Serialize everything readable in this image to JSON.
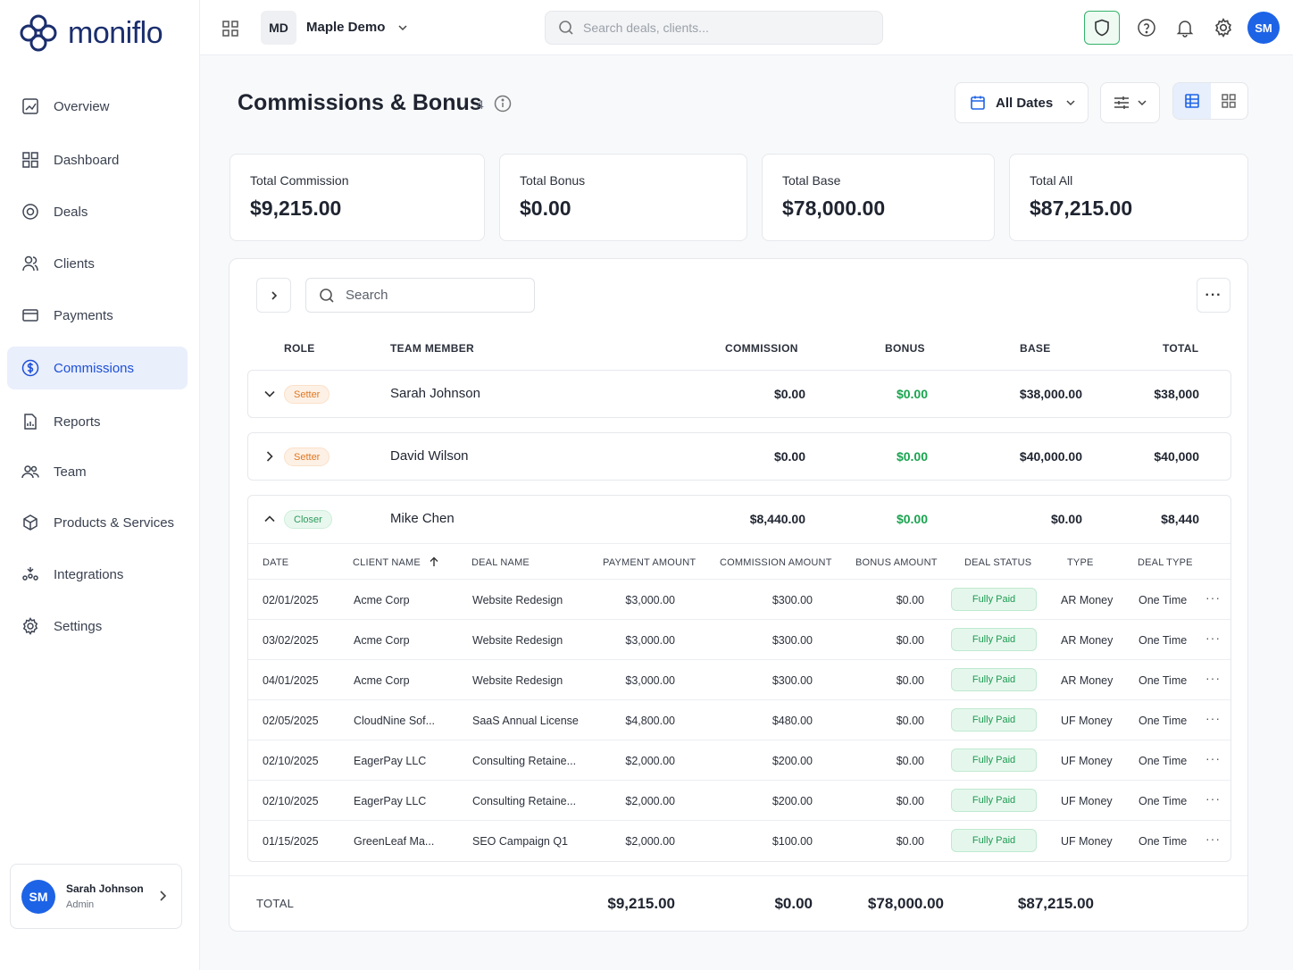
{
  "app": {
    "logo_text": "moniflo"
  },
  "sidebar": {
    "items": [
      {
        "label": "Overview",
        "icon": "chart-icon"
      },
      {
        "label": "Dashboard",
        "icon": "grid-icon"
      },
      {
        "label": "Deals",
        "icon": "target-icon"
      },
      {
        "label": "Clients",
        "icon": "users-icon"
      },
      {
        "label": "Payments",
        "icon": "card-icon"
      },
      {
        "label": "Commissions",
        "icon": "dollar-circle-icon",
        "active": true
      },
      {
        "label": "Reports",
        "icon": "report-icon"
      },
      {
        "label": "Team",
        "icon": "team-icon"
      },
      {
        "label": "Products & Services",
        "icon": "box-icon"
      },
      {
        "label": "Integrations",
        "icon": "integrations-icon"
      },
      {
        "label": "Settings",
        "icon": "gear-icon"
      }
    ],
    "user": {
      "initials": "SM",
      "name": "Sarah Johnson",
      "role": "Admin"
    }
  },
  "topbar": {
    "org_initials": "MD",
    "org_name": "Maple Demo",
    "search_placeholder": "Search deals, clients...",
    "user_initials": "SM"
  },
  "page": {
    "title": "Commissions & Bonus",
    "count": "4",
    "date_filter": "All Dates"
  },
  "stats": [
    {
      "label": "Total Commission",
      "value": "$9,215.00"
    },
    {
      "label": "Total Bonus",
      "value": "$0.00"
    },
    {
      "label": "Total Base",
      "value": "$78,000.00"
    },
    {
      "label": "Total All",
      "value": "$87,215.00"
    }
  ],
  "table": {
    "search_placeholder": "Search",
    "headers": {
      "role": "ROLE",
      "member": "TEAM MEMBER",
      "commission": "COMMISSION",
      "bonus": "BONUS",
      "base": "BASE",
      "total": "TOTAL"
    },
    "members": [
      {
        "role": "Setter",
        "name": "Sarah Johnson",
        "commission": "$0.00",
        "bonus": "$0.00",
        "base": "$38,000.00",
        "total": "$38,000"
      },
      {
        "role": "Setter",
        "name": "David Wilson",
        "commission": "$0.00",
        "bonus": "$0.00",
        "base": "$40,000.00",
        "total": "$40,000"
      },
      {
        "role": "Closer",
        "name": "Mike Chen",
        "commission": "$8,440.00",
        "bonus": "$0.00",
        "base": "$0.00",
        "total": "$8,440"
      }
    ],
    "sub_headers": {
      "date": "DATE",
      "client": "CLIENT NAME",
      "deal": "DEAL NAME",
      "payment": "PAYMENT AMOUNT",
      "commission": "COMMISSION AMOUNT",
      "bonus": "BONUS AMOUNT",
      "status": "DEAL STATUS",
      "type": "TYPE",
      "deal_type": "DEAL TYPE"
    },
    "sub_rows": [
      {
        "date": "02/01/2025",
        "client": "Acme Corp",
        "deal": "Website Redesign",
        "payment": "$3,000.00",
        "commission": "$300.00",
        "bonus": "$0.00",
        "status": "Fully Paid",
        "type": "AR Money",
        "deal_type": "One Time"
      },
      {
        "date": "03/02/2025",
        "client": "Acme Corp",
        "deal": "Website Redesign",
        "payment": "$3,000.00",
        "commission": "$300.00",
        "bonus": "$0.00",
        "status": "Fully Paid",
        "type": "AR Money",
        "deal_type": "One Time"
      },
      {
        "date": "04/01/2025",
        "client": "Acme Corp",
        "deal": "Website Redesign",
        "payment": "$3,000.00",
        "commission": "$300.00",
        "bonus": "$0.00",
        "status": "Fully Paid",
        "type": "AR Money",
        "deal_type": "One Time"
      },
      {
        "date": "02/05/2025",
        "client": "CloudNine Sof...",
        "deal": "SaaS Annual License",
        "payment": "$4,800.00",
        "commission": "$480.00",
        "bonus": "$0.00",
        "status": "Fully Paid",
        "type": "UF Money",
        "deal_type": "One Time"
      },
      {
        "date": "02/10/2025",
        "client": "EagerPay LLC",
        "deal": "Consulting Retaine...",
        "payment": "$2,000.00",
        "commission": "$200.00",
        "bonus": "$0.00",
        "status": "Fully Paid",
        "type": "UF Money",
        "deal_type": "One Time"
      },
      {
        "date": "02/10/2025",
        "client": "EagerPay LLC",
        "deal": "Consulting Retaine...",
        "payment": "$2,000.00",
        "commission": "$200.00",
        "bonus": "$0.00",
        "status": "Fully Paid",
        "type": "UF Money",
        "deal_type": "One Time"
      },
      {
        "date": "01/15/2025",
        "client": "GreenLeaf Ma...",
        "deal": "SEO Campaign Q1",
        "payment": "$2,000.00",
        "commission": "$100.00",
        "bonus": "$0.00",
        "status": "Fully Paid",
        "type": "UF Money",
        "deal_type": "One Time"
      }
    ],
    "totals": {
      "label": "TOTAL",
      "commission": "$9,215.00",
      "bonus": "$0.00",
      "base": "$78,000.00",
      "total": "$87,215.00"
    }
  },
  "colors": {
    "accent": "#1d4fd8",
    "green": "#19a44f",
    "setter": "#e07820"
  }
}
